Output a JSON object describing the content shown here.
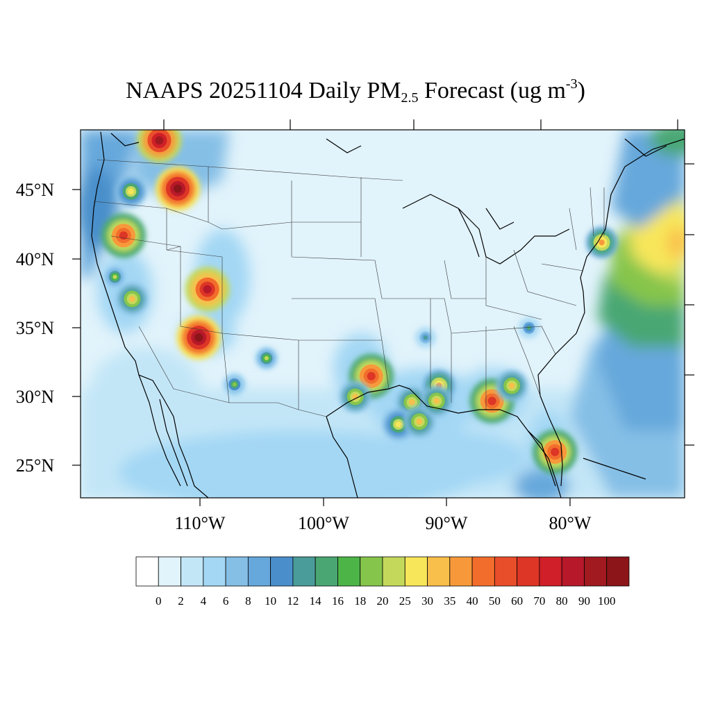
{
  "title": {
    "prefix": "NAAPS 20251104 Daily PM",
    "subscript": "2.5",
    "middle": " Forecast (ug m",
    "superscript": "-3",
    "suffix": ")"
  },
  "axes": {
    "lat_labels": [
      "45°N",
      "40°N",
      "35°N",
      "30°N",
      "25°N"
    ],
    "lon_labels": [
      "110°W",
      "100°W",
      "90°W",
      "80°W"
    ]
  },
  "colorbar": {
    "labels": [
      "0",
      "2",
      "4",
      "6",
      "8",
      "10",
      "12",
      "14",
      "16",
      "18",
      "20",
      "25",
      "30",
      "35",
      "40",
      "50",
      "60",
      "70",
      "80",
      "90",
      "100"
    ],
    "colors": [
      "#ffffff",
      "#e1f3fb",
      "#c3e6f7",
      "#a3d7f4",
      "#85bfe6",
      "#66a8dc",
      "#4a8fcb",
      "#4a9c9a",
      "#4aa773",
      "#4db548",
      "#86c54c",
      "#c4d95b",
      "#f8e65a",
      "#f9bf4b",
      "#f7993b",
      "#f26d2c",
      "#e94e2a",
      "#dd3526",
      "#d01f28",
      "#b7192a",
      "#a01a20",
      "#8b1518"
    ]
  },
  "hotspots": [
    {
      "lon": -113.3,
      "lat": 48.6,
      "value": 90
    },
    {
      "lon": -111.8,
      "lat": 45.1,
      "value": 100
    },
    {
      "lon": -116.2,
      "lat": 41.7,
      "value": 60
    },
    {
      "lon": -109.4,
      "lat": 37.8,
      "value": 80
    },
    {
      "lon": -110.1,
      "lat": 34.3,
      "value": 100
    },
    {
      "lon": -116.9,
      "lat": 38.7,
      "value": 20
    },
    {
      "lon": -115.5,
      "lat": 37.1,
      "value": 30
    },
    {
      "lon": -115.6,
      "lat": 44.9,
      "value": 25
    },
    {
      "lon": -104.6,
      "lat": 32.8,
      "value": 20
    },
    {
      "lon": -107.2,
      "lat": 30.9,
      "value": 18
    },
    {
      "lon": -96.1,
      "lat": 31.5,
      "value": 60
    },
    {
      "lon": -97.4,
      "lat": 30.0,
      "value": 30
    },
    {
      "lon": -92.8,
      "lat": 29.6,
      "value": 30
    },
    {
      "lon": -93.9,
      "lat": 28.0,
      "value": 25
    },
    {
      "lon": -92.2,
      "lat": 28.2,
      "value": 30
    },
    {
      "lon": -90.6,
      "lat": 30.8,
      "value": 35
    },
    {
      "lon": -90.8,
      "lat": 29.7,
      "value": 30
    },
    {
      "lon": -86.3,
      "lat": 29.7,
      "value": 60
    },
    {
      "lon": -84.7,
      "lat": 30.8,
      "value": 30
    },
    {
      "lon": -81.2,
      "lat": 26.0,
      "value": 60
    },
    {
      "lon": -77.4,
      "lat": 41.2,
      "value": 35
    },
    {
      "lon": -83.3,
      "lat": 35.0,
      "value": 14
    },
    {
      "lon": -91.7,
      "lat": 34.3,
      "value": 12
    }
  ]
}
